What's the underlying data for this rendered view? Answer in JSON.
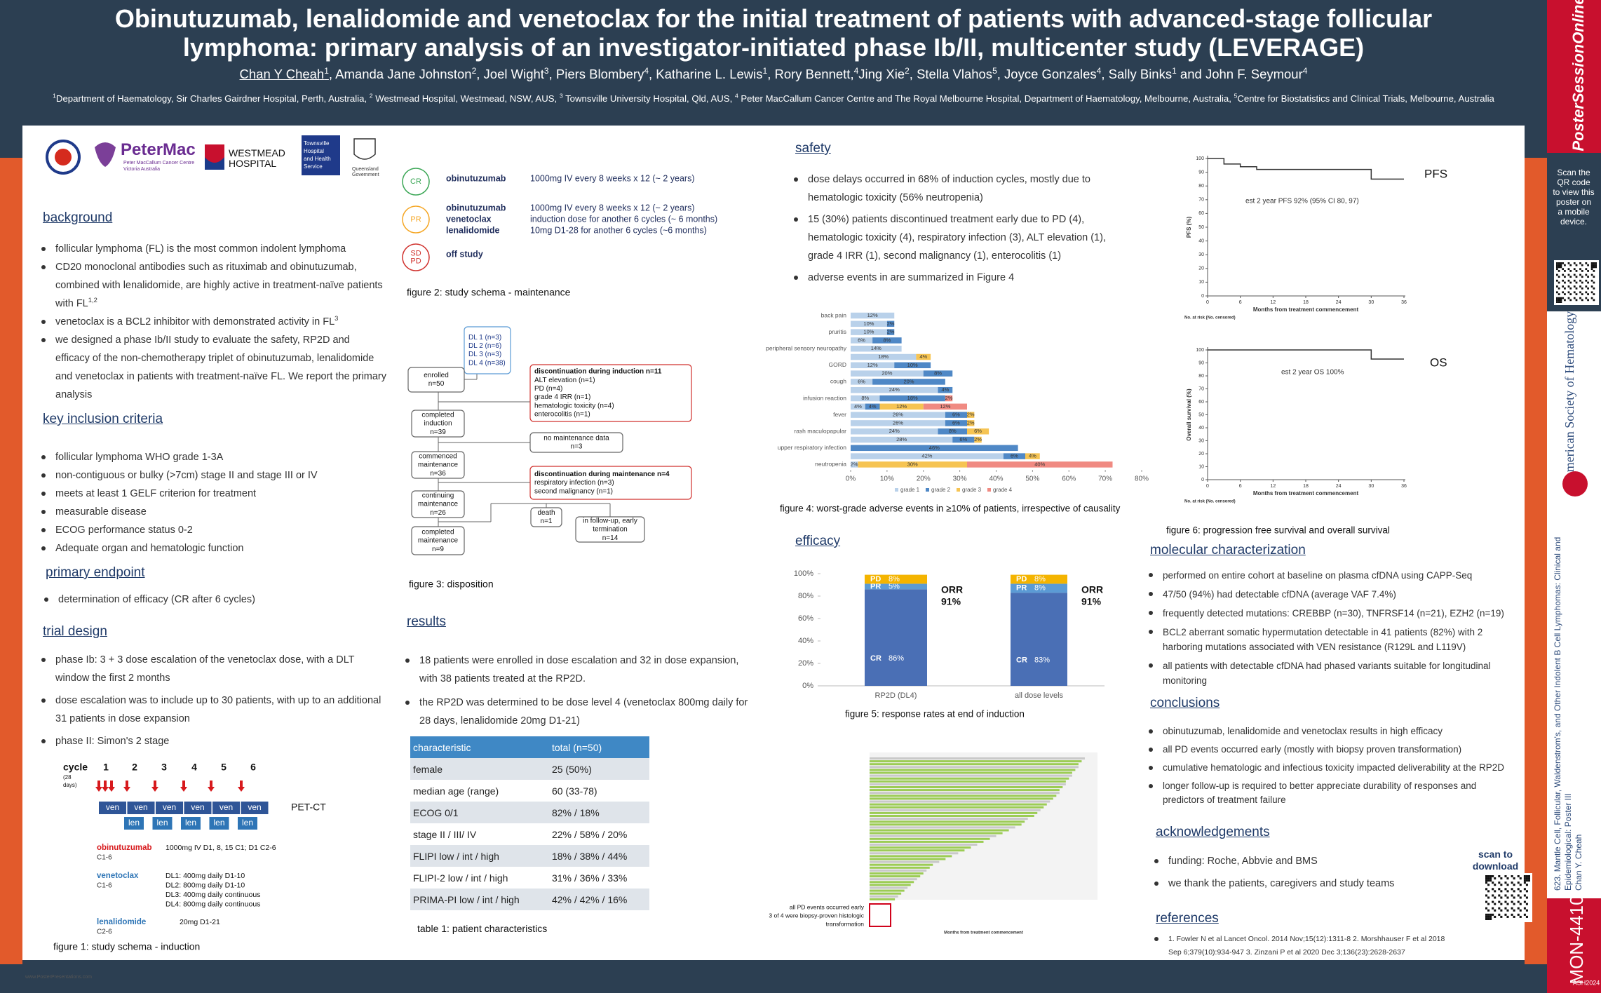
{
  "header": {
    "title": [
      "Obinutuzumab, lenalidomide and venetoclax for the initial treatment of patients with advanced-stage follicular",
      "lymphoma: primary analysis of an investigator-initiated phase Ib/II, multicenter study (LEVERAGE)"
    ],
    "authors": [
      {
        "t": "Chan Y Cheah",
        "s": "1"
      },
      {
        "t": ", Amanda Jane Johnston",
        "s": "2"
      },
      {
        "t": ", Joel Wight",
        "s": "3"
      },
      {
        "t": ", Piers Blombery",
        "s": "4"
      },
      {
        "t": ", Katharine L. Lewis",
        "s": "1"
      },
      {
        "t": ", Rory Bennett,",
        "s": "4"
      },
      {
        "t": "Jing Xie",
        "s": "2"
      },
      {
        "t": ", Stella Vlahos",
        "s": "5"
      },
      {
        "t": ", Joyce Gonzales",
        "s": "4"
      },
      {
        "t": ", Sally Binks",
        "s": "1"
      },
      {
        "t": " and John F. Seymour",
        "s": "4"
      }
    ],
    "affiliations": [
      {
        "s": "1",
        "t": "Department of Haematology, Sir Charles Gairdner Hospital, Perth, Australia, "
      },
      {
        "s": "2",
        "t": " Westmead Hospital, Westmead, NSW, AUS, "
      },
      {
        "s": "3",
        "t": " Townsville University Hospital, Qld, AUS, "
      },
      {
        "s": "4",
        "t": " Peter MacCallum Cancer Centre and The Royal Melbourne Hospital, Department of Haematology, Melbourne, Australia, "
      },
      {
        "s": "5",
        "t": "Centre for Biostatistics and Clinical Trials, Melbourne, Australia"
      }
    ]
  },
  "logos": {
    "petermac": "PeterMac",
    "petermac_sub": [
      "Peter MacCallum Cancer Centre",
      "Victoria Australia"
    ],
    "westmead": [
      "WESTMEAD",
      "HOSPITAL"
    ],
    "townsville": [
      "Townsville",
      "Hospital",
      "and Health",
      "Service"
    ],
    "qld": [
      "Queensland",
      "Government"
    ]
  },
  "background": {
    "heading": "background",
    "bullets": [
      {
        "t": "follicular lymphoma (FL) is the most common indolent lymphoma"
      },
      {
        "t": "CD20 monoclonal antibodies such as rituximab and obinutuzumab, combined with  lenalidomide, are highly active in treatment-naïve patients with FL",
        "s": "1,2"
      },
      {
        "t": "venetoclax is a BCL2 inhibitor with demonstrated activity in FL",
        "s": "3"
      },
      {
        "t": "we designed a phase Ib/II study to evaluate the safety, RP2D and efficacy of the non-chemotherapy triplet of obinutuzumab, lenalidomide and venetoclax in patients with treatment-naïve FL. We report the primary analysis"
      }
    ]
  },
  "inclusion": {
    "heading": "key inclusion criteria",
    "bullets": [
      {
        "t": "follicular lymphoma WHO grade 1-3A"
      },
      {
        "t": "non-contiguous or bulky (>7cm) stage II and stage III or IV"
      },
      {
        "t": "meets at least 1 GELF criterion for treatment"
      },
      {
        "t": "measurable disease"
      },
      {
        "t": "ECOG performance status 0-2"
      },
      {
        "t": "Adequate organ and hematologic function"
      }
    ]
  },
  "endpoint": {
    "heading": "primary endpoint",
    "bullets": [
      {
        "t": "determination of efficacy (CR after 6 cycles)"
      }
    ]
  },
  "design": {
    "heading": "trial design",
    "bullets": [
      {
        "t": "phase Ib: 3 + 3 dose escalation of the venetoclax dose, with a DLT window the first 2 months"
      },
      {
        "t": "dose escalation was to include up to 30 patients, with up to an additional 31 patients in dose expansion"
      },
      {
        "t": "phase II: Simon's 2 stage"
      }
    ]
  },
  "schema": {
    "cycle": "cycle",
    "cycle_note": [
      "(28",
      "days)"
    ],
    "cycles": [
      "1",
      "2",
      "3",
      "4",
      "5",
      "6"
    ],
    "ven": "ven",
    "len": "len",
    "pet": "PET-CT",
    "drugs": [
      {
        "name": "obinutuzumab",
        "cycles": "C1-6",
        "doses": [
          "1000mg IV D1, 8, 15 C1; D1 C2-6"
        ]
      },
      {
        "name": "venetoclax",
        "cycles": "C1-6",
        "doses": [
          "DL1: 400mg daily D1-10",
          "DL2: 800mg daily D1-10",
          "DL3: 400mg daily continuous",
          "DL4: 800mg daily continuous"
        ]
      },
      {
        "name": "lenalidomide",
        "cycles": "C2-6",
        "doses": [
          "20mg D1-21"
        ]
      }
    ],
    "caption": "figure 1: study schema - induction"
  },
  "maintenance": {
    "rows": [
      {
        "badge": [
          "CR"
        ],
        "drugs": [
          "obinutuzumab"
        ],
        "doses": [
          "1000mg IV every 8 weeks x 12 (~ 2 years)"
        ]
      },
      {
        "badge": [
          "PR"
        ],
        "drugs": [
          "obinutuzumab",
          "venetoclax",
          "lenalidomide"
        ],
        "doses": [
          "1000mg IV every 8 weeks x 12 (~ 2 years)",
          "induction dose for another 6 cycles (~ 6 months)",
          "10mg D1-28 for another 6 cycles (~6 months)"
        ]
      },
      {
        "badge": [
          "SD",
          "PD"
        ],
        "drugs": [
          "off study"
        ],
        "doses": []
      }
    ],
    "caption": "figure 2: study schema - maintenance"
  },
  "disposition": {
    "boxes": [
      {
        "lines": [
          "DL 1 (n=3)",
          "DL 2 (n=6)",
          "DL 3 (n=3)",
          "DL 4 (n=38)"
        ]
      },
      {
        "lines": [
          "enrolled",
          "n=50"
        ]
      },
      {
        "lines": [
          "completed",
          "induction",
          "n=39"
        ]
      },
      {
        "lines": [
          "commenced",
          "maintenance",
          "n=36"
        ]
      },
      {
        "lines": [
          "continuing",
          "maintenance",
          "n=26"
        ]
      },
      {
        "lines": [
          "completed",
          "maintenance",
          "n=9"
        ]
      },
      {
        "lines": [
          "discontinuation during induction n=11",
          "ALT elevation (n=1)",
          "PD (n=4)",
          "grade 4 IRR (n=1)",
          "hematologic toxicity (n=4)",
          "enterocolitis (n=1)"
        ]
      },
      {
        "lines": [
          "no maintenance data",
          "n=3"
        ]
      },
      {
        "lines": [
          "discontinuation during maintenance n=4",
          "respiratory infection (n=3)",
          "second malignancy (n=1)"
        ]
      },
      {
        "lines": [
          "death",
          "n=1"
        ]
      },
      {
        "lines": [
          "in follow-up, early",
          "termination",
          "n=14"
        ]
      }
    ],
    "caption": "figure 3: disposition"
  },
  "results": {
    "heading": "results",
    "bullets": [
      {
        "t": "18 patients were enrolled in dose escalation and 32 in dose expansion, with 38 patients treated at the RP2D."
      },
      {
        "t": "the RP2D was determined to be dose level 4 (venetoclax 800mg daily for 28 days, lenalidomide 20mg D1-21)"
      }
    ]
  },
  "table": {
    "header": [
      "characteristic",
      "total (n=50)"
    ],
    "rows": [
      [
        "female",
        "25 (50%)"
      ],
      [
        "median age (range)",
        "60 (33-78)"
      ],
      [
        "ECOG 0/1",
        "82% / 18%"
      ],
      [
        "stage  II / III/ IV",
        "22% / 58% / 20%"
      ],
      [
        "FLIPI  low / int / high",
        "18% / 38% / 44%"
      ],
      [
        "FLIPI-2  low / int / high",
        " 31% / 36% / 33%"
      ],
      [
        "PRIMA-PI  low / int / high",
        "42% / 42% / 16%"
      ]
    ],
    "caption": "table 1: patient characteristics"
  },
  "safety": {
    "heading": "safety",
    "bullets": [
      {
        "t": "dose delays occurred in 68% of induction cycles, mostly due to hematologic toxicity (56% neutropenia)"
      },
      {
        "t": "15 (30%) patients discontinued treatment early due to PD (4), hematologic toxicity (4), respiratory infection (3), ALT elevation (1), grade 4 IRR (1), second malignancy (1), enterocolitis (1)"
      },
      {
        "t": "adverse events in are summarized in Figure 4"
      }
    ]
  },
  "efficacy": {
    "heading": "efficacy"
  },
  "molecular": {
    "heading": "molecular characterization",
    "bullets": [
      {
        "t": "performed on entire cohort at baseline on plasma cfDNA using CAPP-Seq"
      },
      {
        "t": "47/50 (94%) had detectable cfDNA (average VAF 7.4%)"
      },
      {
        "t": "frequently detected mutations: CREBBP (n=30), TNFRSF14 (n=21), EZH2 (n=19)"
      },
      {
        "t": "BCL2 aberrant somatic hypermutation detectable in 41 patients (82%) with 2 harboring mutations associated with VEN resistance (R129L and L119V)"
      },
      {
        "t": "all patients with detectable cfDNA had phased variants suitable for longitudinal monitoring"
      }
    ]
  },
  "conclusions": {
    "heading": "conclusions",
    "bullets": [
      {
        "t": "obinutuzumab, lenalidomide and venetoclax results in high efficacy"
      },
      {
        "t": "all PD events occurred early (mostly with biopsy proven transformation)"
      },
      {
        "t": "cumulative hematologic and infectious toxicity impacted deliverability at the RP2D"
      },
      {
        "t": "longer follow-up is required to better appreciate durability of responses and predictors of treatment failure"
      }
    ]
  },
  "acknowledgements": {
    "heading": "acknowledgements",
    "bullets": [
      {
        "t": "funding: Roche, Abbvie and BMS"
      },
      {
        "t": "we thank the patients, caregivers and study teams"
      }
    ],
    "scan": [
      "scan to",
      "download"
    ]
  },
  "references": {
    "heading": "references",
    "bullets": [
      {
        "t": "1.   Fowler N et al Lancet Oncol. 2014 Nov;15(12):1311-8 2. Morshhauser F et al 2018 Sep 6;379(10):934-947 3. Zinzani P et al 2020 Dec 3;136(23):2628-2637"
      }
    ]
  },
  "sidebar": {
    "brand": "PosterSessionOnline",
    "qr_note": [
      "Scan the",
      "QR code",
      "to view this",
      "poster on",
      "a mobile",
      "device."
    ],
    "society": "American Society of Hematology",
    "session": [
      "623. Mantle Cell, Follicular, Waldenstrom's, and Other Indolent B Cell Lymphomas: Clinical and",
      "Epidemiological: Poster III",
      "Chan Y. Cheah"
    ],
    "code": "MON-4410",
    "meeting": "ASH2024"
  },
  "footer": "www.PosterPresentations.com",
  "chart_data": [
    {
      "type": "bar",
      "orientation": "horizontal",
      "stacked": true,
      "caption": "figure 4: worst-grade adverse events in ≥10% of patients, irrespective of causality",
      "categories": [
        "back pain",
        null,
        "pruritis",
        null,
        "peripheral sensory neuropathy",
        null,
        "GORD",
        null,
        "cough",
        null,
        "infusion reaction",
        null,
        "fever",
        null,
        "rash maculopapular",
        null,
        "upper respiratory infection",
        null,
        "neutropenia"
      ],
      "series": [
        {
          "name": "grade 1",
          "color": "#b9d1ea",
          "values": [
            12,
            10,
            10,
            6,
            14,
            18,
            12,
            20,
            6,
            24,
            8,
            4,
            26,
            26,
            24,
            28,
            null,
            42,
            2
          ],
          "value_labels": [
            "12%",
            "10%",
            "10%",
            "6%",
            "14%",
            "18%",
            "12%",
            "20%",
            "6%",
            "24%",
            "8%",
            "4%",
            "26%",
            "26%",
            "24%",
            "28%",
            null,
            "42%",
            "2%"
          ]
        },
        {
          "name": "grade 2",
          "color": "#4f88c6",
          "values": [
            null,
            2,
            2,
            8,
            null,
            null,
            10,
            8,
            20,
            4,
            18,
            4,
            6,
            6,
            8,
            6,
            46,
            6,
            null
          ],
          "value_labels": [
            null,
            "2%",
            "2%",
            "8%",
            null,
            null,
            "10%",
            "8%",
            "20%",
            "4%",
            "18%",
            "4%",
            "6%",
            "6%",
            "8%",
            "6%",
            "46%",
            "6%",
            null
          ]
        },
        {
          "name": "grade 3",
          "color": "#f6c453",
          "values": [
            null,
            null,
            null,
            null,
            null,
            4,
            null,
            null,
            null,
            null,
            null,
            12,
            2,
            2,
            6,
            2,
            null,
            4,
            30
          ],
          "value_labels": [
            null,
            null,
            null,
            null,
            null,
            "4%",
            null,
            null,
            null,
            null,
            null,
            "12%",
            "2%",
            "2%",
            "6%",
            "2%",
            null,
            "4%",
            "30%"
          ]
        },
        {
          "name": "grade 4",
          "color": "#f08a82",
          "values": [
            null,
            null,
            null,
            null,
            null,
            null,
            null,
            null,
            null,
            null,
            2,
            12,
            null,
            null,
            null,
            null,
            null,
            null,
            40
          ],
          "value_labels": [
            null,
            null,
            null,
            null,
            null,
            null,
            null,
            null,
            null,
            null,
            "2%",
            "12%",
            null,
            null,
            null,
            null,
            null,
            null,
            "40%"
          ]
        }
      ],
      "xlim": [
        0,
        80
      ],
      "xticks": [
        {
          "value": 0,
          "label": "0%"
        },
        {
          "value": 10,
          "label": "10%"
        },
        {
          "value": 20,
          "label": "20%"
        },
        {
          "value": 30,
          "label": "30%"
        },
        {
          "value": 40,
          "label": "40%"
        },
        {
          "value": 50,
          "label": "50%"
        },
        {
          "value": 60,
          "label": "60%"
        },
        {
          "value": 70,
          "label": "70%"
        },
        {
          "value": 80,
          "label": "80%"
        }
      ],
      "grid": false,
      "legend": "bottom"
    },
    {
      "type": "bar",
      "stacked": true,
      "caption": "figure 5: response rates at end of induction",
      "categories": [
        "RP2D (DL4)",
        "all dose levels"
      ],
      "series": [
        {
          "name": "CR",
          "color": "#4a6fb5",
          "values": [
            86,
            83
          ],
          "value_labels": [
            "86%",
            "83%"
          ]
        },
        {
          "name": "PR",
          "color": "#5b9bd5",
          "values": [
            5,
            8
          ],
          "value_labels": [
            "5%",
            "8%"
          ]
        },
        {
          "name": "PD",
          "color": "#f4b400",
          "values": [
            8,
            8
          ],
          "value_labels": [
            "8%",
            "8%"
          ]
        }
      ],
      "orr": {
        "label": "ORR",
        "values": [
          91,
          91
        ],
        "value_labels": [
          "91%",
          "91%"
        ]
      },
      "ylim": [
        0,
        100
      ],
      "yticks": [
        {
          "value": 0,
          "label": "0%"
        },
        {
          "value": 20,
          "label": "20%"
        },
        {
          "value": 40,
          "label": "40%"
        },
        {
          "value": 60,
          "label": "60%"
        },
        {
          "value": 80,
          "label": "80%"
        },
        {
          "value": 100,
          "label": "100%"
        }
      ],
      "grid": false
    },
    {
      "type": "line",
      "step": true,
      "caption": "figure 6: progression free survival and overall survival",
      "label": "PFS",
      "ylabel": "PFS (%)",
      "xlabel": "Months from treatment commencement",
      "annotation": "est 2 year PFS 92% (95% CI 80, 97)",
      "risk_label": "No. at risk (No. censored)",
      "color": "#333333",
      "x": [
        0,
        3,
        3,
        6,
        6,
        9,
        9,
        30,
        30,
        36
      ],
      "values": [
        100,
        100,
        96,
        96,
        94,
        94,
        92,
        92,
        85,
        85
      ],
      "xlim": [
        0,
        36
      ],
      "xticks": [
        0,
        6,
        12,
        18,
        24,
        30,
        36
      ],
      "ylim": [
        0,
        100
      ],
      "yticks": [
        0,
        10,
        20,
        30,
        40,
        50,
        60,
        70,
        80,
        90,
        100
      ],
      "grid": false
    },
    {
      "type": "line",
      "step": true,
      "label": "OS",
      "ylabel": "Overall survival (%)",
      "xlabel": "Months from treatment commencement",
      "annotation": "est 2 year OS 100%",
      "risk_label": "No. at risk (No. censored)",
      "color": "#333333",
      "x": [
        0,
        30,
        30,
        36
      ],
      "values": [
        100,
        100,
        93,
        93
      ],
      "xlim": [
        0,
        36
      ],
      "xticks": [
        0,
        6,
        12,
        18,
        24,
        30,
        36
      ],
      "ylim": [
        0,
        100
      ],
      "yticks": [
        0,
        10,
        20,
        30,
        40,
        50,
        60,
        70,
        80,
        90,
        100
      ],
      "grid": false
    },
    {
      "type": "swimmer",
      "xlabel": "Months from treatment commencement",
      "annotation": [
        "all PD events occurred early",
        "3 of 4 were biopsy-proven histologic",
        "transformation"
      ],
      "color": "#9ccc55",
      "values": [
        34,
        33.5,
        33,
        33,
        32.5,
        32,
        32,
        31.5,
        31,
        31,
        30.5,
        30,
        30,
        29.5,
        29,
        28.5,
        28,
        27.5,
        27,
        26.5,
        26,
        25,
        24.5,
        24,
        23,
        22,
        21,
        20,
        19,
        18,
        17,
        16,
        15,
        14,
        13,
        12,
        11,
        10,
        9.5,
        9,
        8.5,
        8,
        7.5,
        7,
        6.5,
        6,
        5.5,
        5,
        4.5,
        4
      ],
      "xlim": [
        0,
        36
      ]
    }
  ]
}
